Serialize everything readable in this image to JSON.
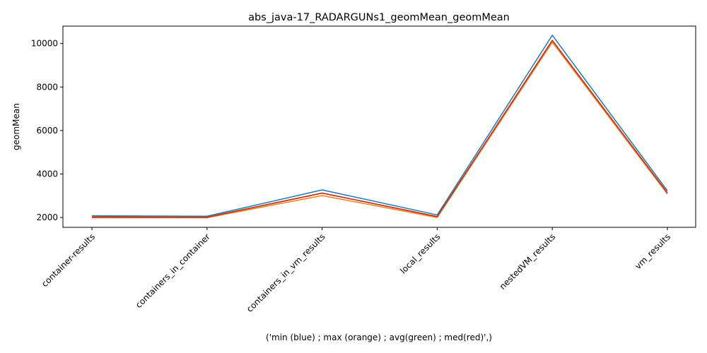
{
  "chart_data": {
    "type": "line",
    "title": "abs_java-17_RADARGUNs1_geomMean_geomMean",
    "xlabel": "('min (blue) ; max (orange) ; avg(green) ; med(red)',)",
    "ylabel": "geomMean",
    "categories": [
      "container-results",
      "containers_in_container",
      "containers_in_vm_results",
      "local_results",
      "nestedVM_results",
      "vm_results"
    ],
    "ylim": [
      1550,
      10800
    ],
    "yticks": [
      2000,
      4000,
      6000,
      8000,
      10000
    ],
    "grid": false,
    "series": [
      {
        "color": "#1f77b4",
        "values": [
          2080,
          2060,
          3270,
          2120,
          10380,
          3230
        ]
      },
      {
        "color": "#ff7f0e",
        "values": [
          1990,
          1990,
          3010,
          2000,
          10060,
          3080
        ]
      },
      {
        "color": "#2ca02c",
        "values": [
          2030,
          2020,
          3130,
          2050,
          10150,
          3140
        ]
      },
      {
        "color": "#d62728",
        "values": [
          2020,
          2010,
          3120,
          2040,
          10140,
          3130
        ]
      }
    ]
  }
}
